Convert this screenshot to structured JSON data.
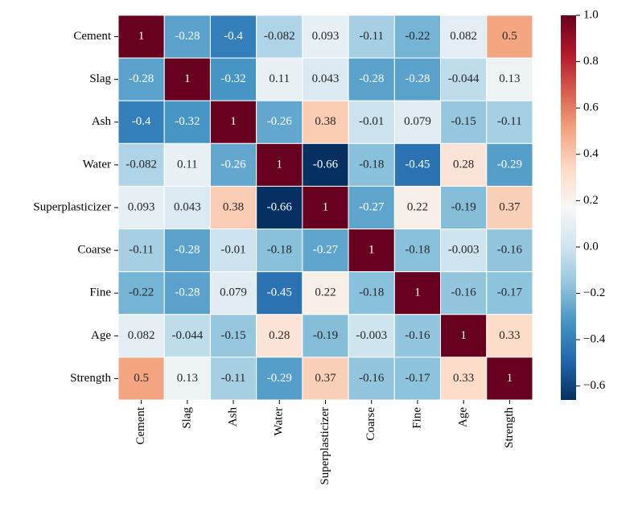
{
  "chart_data": {
    "type": "heatmap",
    "x_categories": [
      "Cement",
      "Slag",
      "Ash",
      "Water",
      "Superplasticizer",
      "Coarse",
      "Fine",
      "Age",
      "Strength"
    ],
    "y_categories": [
      "Cement",
      "Slag",
      "Ash",
      "Water",
      "Superplasticizer",
      "Coarse",
      "Fine",
      "Age",
      "Strength"
    ],
    "values": [
      [
        1,
        -0.28,
        -0.4,
        -0.082,
        0.093,
        -0.11,
        -0.22,
        0.082,
        0.5
      ],
      [
        -0.28,
        1,
        -0.32,
        0.11,
        0.043,
        -0.28,
        -0.28,
        -0.044,
        0.13
      ],
      [
        -0.4,
        -0.32,
        1,
        -0.26,
        0.38,
        -0.01,
        0.079,
        -0.15,
        -0.11
      ],
      [
        -0.082,
        0.11,
        -0.26,
        1,
        -0.66,
        -0.18,
        -0.45,
        0.28,
        -0.29
      ],
      [
        0.093,
        0.043,
        0.38,
        -0.66,
        1,
        -0.27,
        0.22,
        -0.19,
        0.37
      ],
      [
        -0.11,
        -0.28,
        -0.01,
        -0.18,
        -0.27,
        1,
        -0.18,
        -0.003,
        -0.16
      ],
      [
        -0.22,
        -0.28,
        0.079,
        -0.45,
        0.22,
        -0.18,
        1,
        -0.16,
        -0.17
      ],
      [
        0.082,
        -0.044,
        -0.15,
        0.28,
        -0.19,
        -0.003,
        -0.16,
        1,
        0.33
      ],
      [
        0.5,
        0.13,
        -0.11,
        -0.29,
        0.37,
        -0.16,
        -0.17,
        0.33,
        1
      ]
    ],
    "colormap": "RdBu_r",
    "clim": [
      -0.66,
      1
    ],
    "colorbar_ticks": [
      {
        "value": 1.0,
        "label": "1.0"
      },
      {
        "value": 0.8,
        "label": "0.8"
      },
      {
        "value": 0.6,
        "label": "0.6"
      },
      {
        "value": 0.4,
        "label": "0.4"
      },
      {
        "value": 0.2,
        "label": "0.2"
      },
      {
        "value": 0.0,
        "label": "0.0"
      },
      {
        "value": -0.2,
        "label": "−0.2"
      },
      {
        "value": -0.4,
        "label": "−0.4"
      },
      {
        "value": -0.6,
        "label": "−0.6"
      }
    ]
  }
}
